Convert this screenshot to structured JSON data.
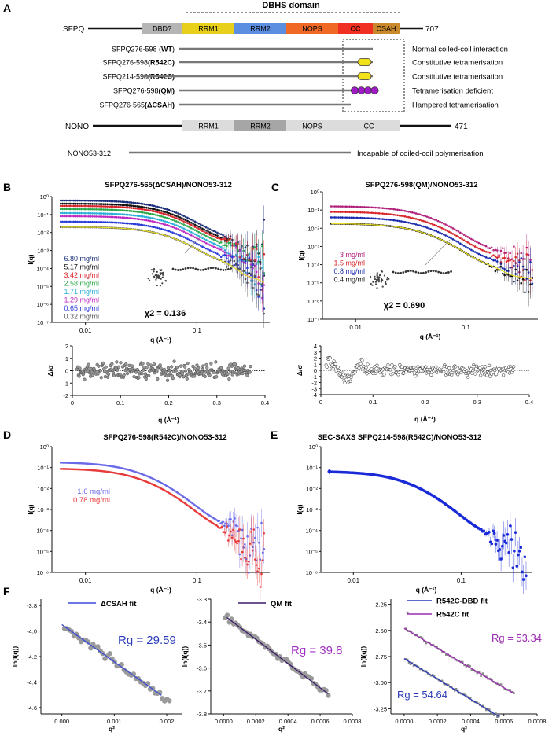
{
  "panels": {
    "A": {
      "letter": "A",
      "domain_title": "DBHS domain",
      "sfpq": {
        "name": "SFPQ",
        "end": "707",
        "domains": [
          "DBD?",
          "RRM1",
          "RRM2",
          "NOPS",
          "CC",
          "CSAH"
        ],
        "colors": [
          "#b5b5b5",
          "#e8cf1c",
          "#5b8ee0",
          "#f06a26",
          "#f03020",
          "#c9882c"
        ]
      },
      "constructs": [
        {
          "pre": "SFPQ276-598 (",
          "bold": "WT",
          "post": ")",
          "desc": "Normal coiled-coil interaction"
        },
        {
          "pre": "SFPQ276-598",
          "bold": "(R542C)",
          "post": "",
          "desc": "Constitutive tetramerisation"
        },
        {
          "pre": "SFPQ214-598",
          "bold": "(R542C)",
          "post": "",
          "desc": "Constitutive tetramerisation"
        },
        {
          "pre": "SFPQ276-598",
          "bold": "(QM)",
          "post": "",
          "desc": "Tetramerisation deficient"
        },
        {
          "pre": "SFPQ276-565",
          "bold": "(ΔCSAH)",
          "post": "",
          "desc": "Hampered tetramerisation"
        }
      ],
      "nono": {
        "name": "NONO",
        "end": "471",
        "domains": [
          "RRM1",
          "RRM2",
          "NOPS",
          "CC"
        ]
      },
      "nono_construct": {
        "name": "NONO53-312",
        "desc": "Incapable of coiled-coil polymerisation"
      }
    },
    "B": {
      "letter": "B",
      "title": "SFPQ276-565(ΔCSAH)/NONO53-312",
      "chi": "χ2 = 0.136",
      "legend": [
        {
          "label": "6.80 mg/ml",
          "color": "#1a2e7a"
        },
        {
          "label": "5.17 mg/ml",
          "color": "#111111"
        },
        {
          "label": "3.42 mg/ml",
          "color": "#d8232a"
        },
        {
          "label": "2.58 mg/ml",
          "color": "#2aa84a"
        },
        {
          "label": "1.71 mg/ml",
          "color": "#2ab0d8"
        },
        {
          "label": "1.29 mg/ml",
          "color": "#c02ac0"
        },
        {
          "label": "0.65 mg/ml",
          "color": "#2a3ad8"
        },
        {
          "label": "0.32 mg/ml",
          "color": "#555555"
        }
      ]
    },
    "C": {
      "letter": "C",
      "title": "SFPQ276-598(QM)/NONO53-312",
      "chi": "χ2 = 0.690",
      "legend": [
        {
          "label": "3 mg/ml",
          "color": "#b0207a"
        },
        {
          "label": "1.5 mg/ml",
          "color": "#d8232a"
        },
        {
          "label": "0.8 mg/ml",
          "color": "#1a2ab0"
        },
        {
          "label": "0.4 mg/ml",
          "color": "#111111"
        }
      ]
    },
    "D": {
      "letter": "D",
      "title": "SFPQ276-598(R542C)/NONO53-312",
      "legend": [
        {
          "label": "1.6 mg/ml",
          "color": "#6a6ae8"
        },
        {
          "label": "0.78 mg/ml",
          "color": "#e83a3a"
        }
      ]
    },
    "E": {
      "letter": "E",
      "title": "SEC-SAXS SFPQ214-598(R542C)/NONO53-312"
    },
    "F": {
      "letter": "F"
    }
  },
  "chart_data": [
    {
      "id": "B-main",
      "type": "scatter",
      "xscale": "log",
      "yscale": "log",
      "xlabel": "q (Å⁻¹)",
      "ylabel": "I(q)",
      "xticks": [
        {
          "v": 0.01,
          "label": "0.01"
        },
        {
          "v": 0.1,
          "label": "0.1"
        }
      ],
      "yticks": [
        {
          "e": 0,
          "label": "10⁰"
        },
        {
          "e": -1,
          "label": "10⁻¹"
        },
        {
          "e": -2,
          "label": "10⁻²"
        },
        {
          "e": -3,
          "label": "10⁻³"
        },
        {
          "e": -4,
          "label": "10⁻⁴"
        },
        {
          "e": -5,
          "label": "10⁻⁵"
        },
        {
          "e": -6,
          "label": "10⁻⁶"
        },
        {
          "e": -7,
          "label": "10⁻⁷"
        }
      ],
      "xlim": [
        0.005,
        0.45
      ],
      "ylim": [
        1e-07,
        1
      ],
      "series": [
        {
          "name": "6.80 mg/ml",
          "I0": 0.6,
          "Rg": 29.59,
          "color": "#1a2e7a"
        },
        {
          "name": "5.17 mg/ml",
          "I0": 0.4,
          "Rg": 29.59,
          "color": "#111111"
        },
        {
          "name": "3.42 mg/ml",
          "I0": 0.3,
          "Rg": 29.59,
          "color": "#d8232a"
        },
        {
          "name": "2.58 mg/ml",
          "I0": 0.2,
          "Rg": 29.59,
          "color": "#2aa84a"
        },
        {
          "name": "1.71 mg/ml",
          "I0": 0.12,
          "Rg": 29.59,
          "color": "#2ab0d8"
        },
        {
          "name": "1.29 mg/ml",
          "I0": 0.08,
          "Rg": 29.59,
          "color": "#c02ac0"
        },
        {
          "name": "0.65 mg/ml",
          "I0": 0.04,
          "Rg": 29.59,
          "color": "#2a3ad8"
        },
        {
          "name": "0.32 mg/ml",
          "I0": 0.02,
          "Rg": 29.59,
          "color": "#555555"
        }
      ]
    },
    {
      "id": "B-resid",
      "type": "scatter",
      "xlabel": "q (Å⁻¹)",
      "ylabel": "Δ/σ",
      "xlim": [
        0,
        0.4
      ],
      "ylim": [
        -2,
        2
      ],
      "xticks": [
        0,
        0.1,
        0.2,
        0.3,
        0.4
      ],
      "yticks": [
        -2,
        -1,
        0,
        1,
        2
      ]
    },
    {
      "id": "C-main",
      "type": "scatter",
      "xscale": "log",
      "yscale": "log",
      "xlabel": "q (Å⁻¹)",
      "ylabel": "I(q)",
      "xticks": [
        {
          "v": 0.01,
          "label": "0.01"
        },
        {
          "v": 0.1,
          "label": "0.1"
        }
      ],
      "yticks": [
        {
          "e": 0,
          "label": "10⁰"
        },
        {
          "e": -1,
          "label": "10⁻¹"
        },
        {
          "e": -2,
          "label": "10⁻²"
        },
        {
          "e": -3,
          "label": "10⁻³"
        },
        {
          "e": -4,
          "label": "10⁻⁴"
        },
        {
          "e": -5,
          "label": "10⁻⁵"
        },
        {
          "e": -6,
          "label": "10⁻⁶"
        },
        {
          "e": -7,
          "label": "10⁻⁷"
        }
      ],
      "xlim": [
        0.005,
        0.45
      ],
      "ylim": [
        1e-07,
        1
      ],
      "series": [
        {
          "name": "3 mg/ml",
          "I0": 0.16,
          "Rg": 39.8,
          "color": "#b0207a"
        },
        {
          "name": "1.5 mg/ml",
          "I0": 0.08,
          "Rg": 39.8,
          "color": "#d8232a"
        },
        {
          "name": "0.8 mg/ml",
          "I0": 0.04,
          "Rg": 39.8,
          "color": "#1a2ab0"
        },
        {
          "name": "0.4 mg/ml",
          "I0": 0.018,
          "Rg": 39.8,
          "color": "#111111"
        }
      ]
    },
    {
      "id": "C-resid",
      "type": "scatter",
      "xlabel": "q (Å⁻¹)",
      "ylabel": "Δ/σ",
      "xlim": [
        0,
        0.4
      ],
      "ylim": [
        -4,
        4
      ],
      "xticks": [
        0,
        0.1,
        0.2,
        0.3,
        0.4
      ],
      "yticks": [
        -4,
        -3,
        -2,
        -1,
        0,
        1,
        2,
        3,
        4
      ]
    },
    {
      "id": "D-main",
      "type": "scatter",
      "xscale": "log",
      "yscale": "log",
      "xlabel": "q (Å⁻¹)",
      "ylabel": "I(q)",
      "xticks": [
        {
          "v": 0.01,
          "label": "0.01"
        },
        {
          "v": 0.1,
          "label": "0.1"
        }
      ],
      "yticks": [
        {
          "e": 0,
          "label": "10⁰"
        },
        {
          "e": -1,
          "label": "10⁻¹"
        },
        {
          "e": -2,
          "label": "10⁻²"
        },
        {
          "e": -3,
          "label": "10⁻³"
        },
        {
          "e": -4,
          "label": "10⁻⁴"
        },
        {
          "e": -5,
          "label": "10⁻⁵"
        },
        {
          "e": -6,
          "label": "10⁻⁶"
        }
      ],
      "xlim": [
        0.005,
        0.45
      ],
      "ylim": [
        1e-06,
        1
      ],
      "series": [
        {
          "name": "1.6 mg/ml",
          "I0": 0.18,
          "Rg": 54.64,
          "color": "#6a6ae8"
        },
        {
          "name": "0.78 mg/ml",
          "I0": 0.09,
          "Rg": 53.34,
          "color": "#e83a3a"
        }
      ]
    },
    {
      "id": "E-main",
      "type": "scatter",
      "xscale": "log",
      "yscale": "log",
      "xlabel": "q (Å⁻¹)",
      "ylabel": "I(q)",
      "xticks": [
        {
          "v": 0.01,
          "label": "0.01"
        },
        {
          "v": 0.1,
          "label": "0.1"
        }
      ],
      "yticks": [
        {
          "e": 0,
          "label": "10⁰"
        },
        {
          "e": -1,
          "label": "10⁻¹"
        },
        {
          "e": -2,
          "label": "10⁻²"
        },
        {
          "e": -3,
          "label": "10⁻³"
        },
        {
          "e": -4,
          "label": "10⁻⁴"
        },
        {
          "e": -5,
          "label": "10⁻⁵"
        },
        {
          "e": -6,
          "label": "10⁻⁶"
        }
      ],
      "xlim": [
        0.005,
        0.45
      ],
      "ylim": [
        1e-06,
        1
      ],
      "series": [
        {
          "name": "SEC-SAXS",
          "I0": 0.065,
          "Rg": 54.64,
          "color": "#1a2ad8"
        }
      ]
    },
    {
      "id": "F1",
      "type": "scatter",
      "legend": "ΔCSAH fit",
      "fit_color": "#3a4ad8",
      "rg_label": "Rg = 29.59",
      "rg_color": "#2a3ab8",
      "xlabel": "q²",
      "ylabel": "ln(I(q))",
      "xlim": [
        -0.0004,
        0.0023
      ],
      "ylim": [
        -4.65,
        -3.75
      ],
      "xticks": [
        {
          "v": 0.0,
          "label": "0.000"
        },
        {
          "v": 0.001,
          "label": "0.001"
        },
        {
          "v": 0.002,
          "label": "0.002"
        }
      ],
      "yticks": [
        {
          "v": -3.8,
          "label": "-3.8"
        },
        {
          "v": -4.0,
          "label": "-4.0"
        },
        {
          "v": -4.2,
          "label": "-4.2"
        },
        {
          "v": -4.4,
          "label": "-4.4"
        },
        {
          "v": -4.6,
          "label": "-4.6"
        }
      ],
      "fit": {
        "x0": 0.0,
        "y0": -3.95,
        "slope": -291.8,
        "xend": 0.0019
      },
      "points": {
        "xstart": 5e-05,
        "xend": 0.00205,
        "n": 45,
        "scatter": 0.03
      }
    },
    {
      "id": "F2",
      "type": "scatter",
      "legend": "QM fit",
      "fit_color": "#3a1a6a",
      "rg_label": "Rg = 39.8",
      "rg_color": "#a030c0",
      "xlabel": "q²",
      "ylabel": "ln(I(q))",
      "xlim": [
        -8e-05,
        0.0008
      ],
      "ylim": [
        -3.8,
        -3.3
      ],
      "xticks": [
        {
          "v": 0.0,
          "label": "0.0000"
        },
        {
          "v": 0.0002,
          "label": "0.0002"
        },
        {
          "v": 0.0004,
          "label": "0.0004"
        },
        {
          "v": 0.0006,
          "label": "0.0006"
        },
        {
          "v": 0.0008,
          "label": "0.0008"
        }
      ],
      "yticks": [
        {
          "v": -3.3,
          "label": "-3.3"
        },
        {
          "v": -3.4,
          "label": "-3.4"
        },
        {
          "v": -3.5,
          "label": "-3.5"
        },
        {
          "v": -3.6,
          "label": "-3.6"
        },
        {
          "v": -3.7,
          "label": "-3.7"
        },
        {
          "v": -3.8,
          "label": "-3.8"
        }
      ],
      "fit": {
        "x0": 2e-05,
        "y0": -3.38,
        "slope": -528,
        "xend": 0.00065
      },
      "points": {
        "xstart": 1e-05,
        "xend": 0.00065,
        "n": 50,
        "scatter": 0.012
      }
    },
    {
      "id": "F3",
      "type": "scatter",
      "legends": [
        {
          "label": "R542C-DBD fit",
          "color": "#2a3ab8"
        },
        {
          "label": "R542C fit",
          "color": "#9a2ab0"
        }
      ],
      "rg_labels": [
        {
          "label": "Rg = 53.34",
          "color": "#9a2ab0"
        },
        {
          "label": "Rg = 54.64",
          "color": "#2a3ab8"
        }
      ],
      "xlabel": "q²",
      "ylabel": "ln(I(q))",
      "xlim": [
        -8e-05,
        0.0008
      ],
      "ylim": [
        -3.3,
        -2.2
      ],
      "xticks": [
        {
          "v": 0.0,
          "label": "0.0000"
        },
        {
          "v": 0.0002,
          "label": "0.0002"
        },
        {
          "v": 0.0004,
          "label": "0.0004"
        },
        {
          "v": 0.0006,
          "label": "0.0006"
        },
        {
          "v": 0.0008,
          "label": "0.0008"
        }
      ],
      "yticks": [
        {
          "v": -2.25,
          "label": "-2.25"
        },
        {
          "v": -2.5,
          "label": "-2.50"
        },
        {
          "v": -2.75,
          "label": "-2.75"
        },
        {
          "v": -3.0,
          "label": "-3.00"
        },
        {
          "v": -3.25,
          "label": "-3.25"
        }
      ],
      "fits": [
        {
          "name": "R542C",
          "x0": 0.0,
          "y0": -2.48,
          "slope": -948,
          "xend": 0.00066,
          "color": "#9a2ab0",
          "pt": "#888888",
          "pstart": 1e-05,
          "pend": 0.00066
        },
        {
          "name": "R542C-DBD",
          "x0": 0.0,
          "y0": -2.77,
          "slope": -973,
          "xend": 0.00057,
          "color": "#2a3ab8",
          "pt": "#8a8a8a",
          "pstart": 1e-05,
          "pend": 0.00057
        }
      ]
    }
  ]
}
